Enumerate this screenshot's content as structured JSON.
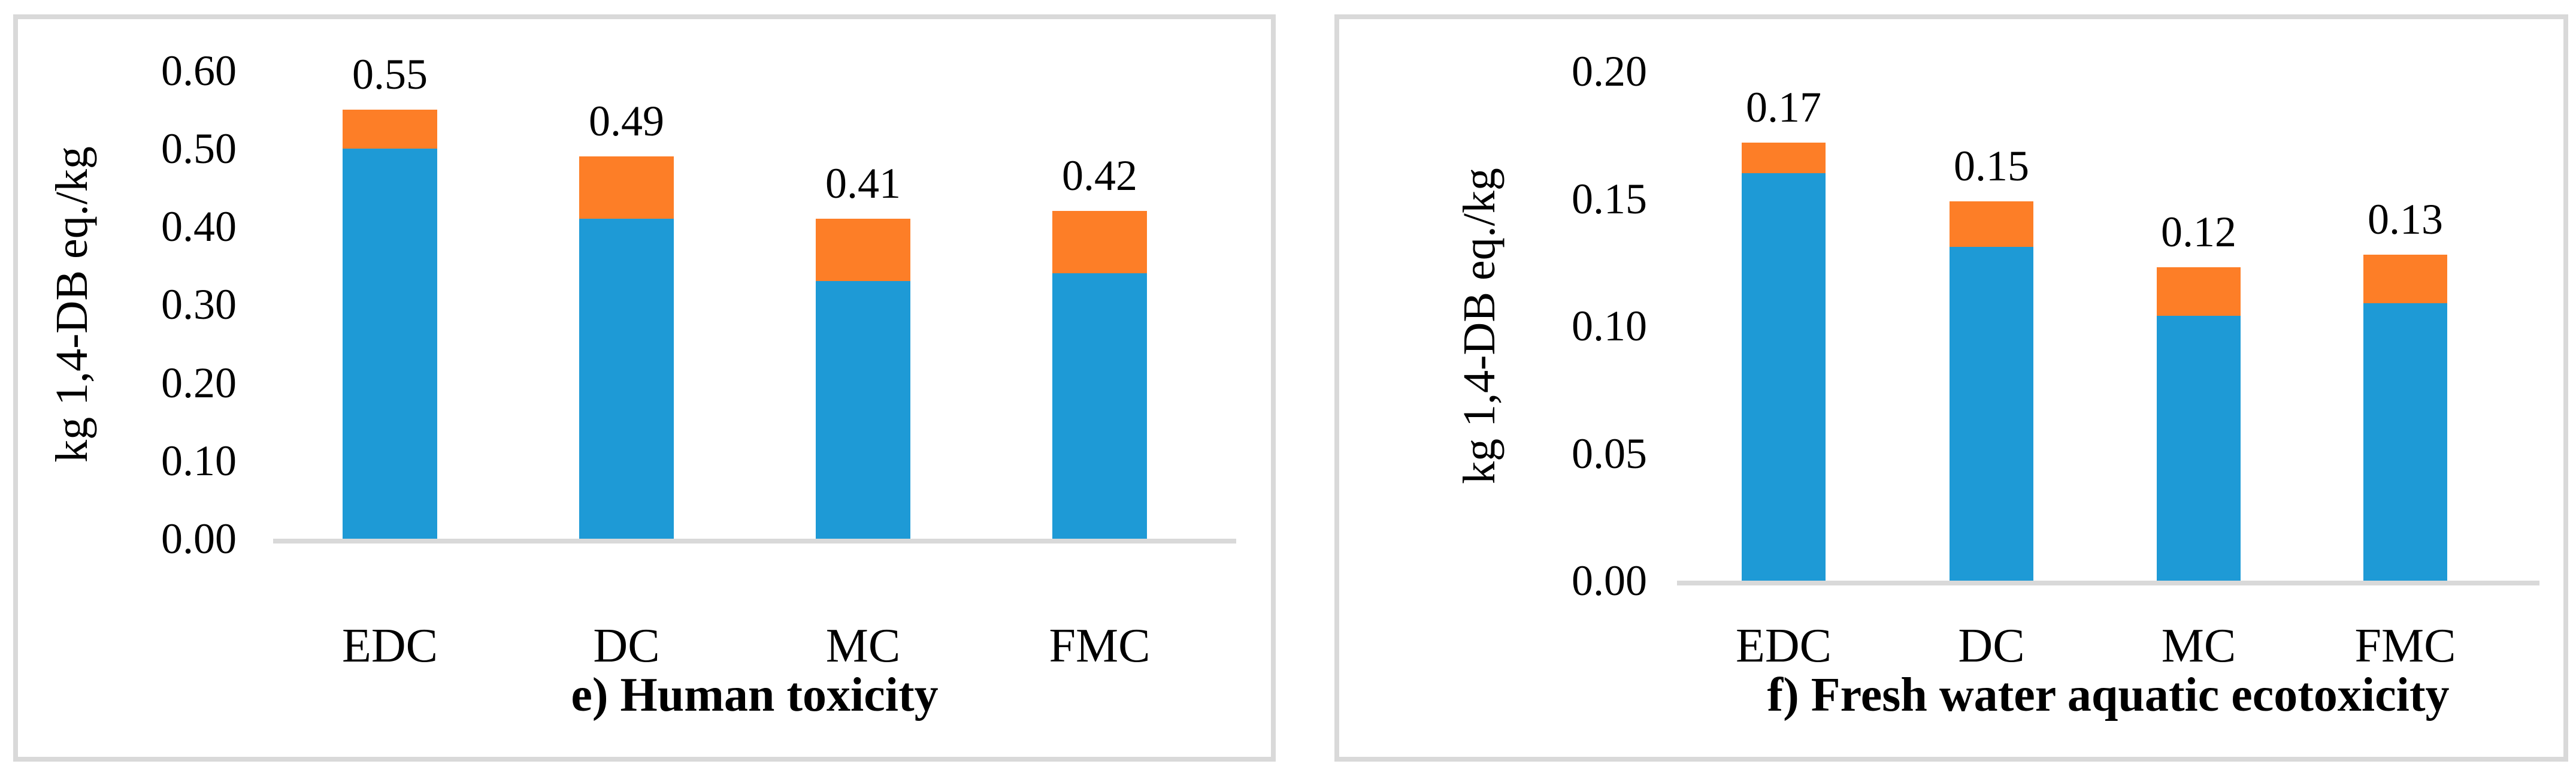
{
  "colors": {
    "series_blue": "#1E9AD6",
    "series_orange": "#FD7E27",
    "axis_gray": "#D9D9D9",
    "text": "#000000",
    "background": "#FFFFFF"
  },
  "chart_data": [
    {
      "type": "bar",
      "stacked": true,
      "title": "e) Human toxicity",
      "ylabel": "kg 1,4-DB eq./kg",
      "xlabel": "",
      "categories": [
        "EDC",
        "DC",
        "MC",
        "FMC"
      ],
      "series": [
        {
          "name": "blue-segment",
          "values": [
            0.5,
            0.41,
            0.33,
            0.34
          ]
        },
        {
          "name": "orange-segment",
          "values": [
            0.05,
            0.08,
            0.08,
            0.08
          ]
        }
      ],
      "total_labels": [
        "0.55",
        "0.49",
        "0.41",
        "0.42"
      ],
      "ylim": [
        0.0,
        0.6
      ],
      "yticks": [
        {
          "label": "0.00",
          "value": 0.0
        },
        {
          "label": "0.10",
          "value": 0.1
        },
        {
          "label": "0.20",
          "value": 0.2
        },
        {
          "label": "0.30",
          "value": 0.3
        },
        {
          "label": "0.40",
          "value": 0.4
        },
        {
          "label": "0.50",
          "value": 0.5
        },
        {
          "label": "0.60",
          "value": 0.6
        }
      ],
      "grid": false,
      "legend": "none"
    },
    {
      "type": "bar",
      "stacked": true,
      "title": "f) Fresh water aquatic ecotoxicity",
      "ylabel": "kg 1,4-DB eq./kg",
      "xlabel": "",
      "categories": [
        "EDC",
        "DC",
        "MC",
        "FMC"
      ],
      "series": [
        {
          "name": "blue-segment",
          "values": [
            0.16,
            0.131,
            0.104,
            0.109
          ]
        },
        {
          "name": "orange-segment",
          "values": [
            0.012,
            0.018,
            0.019,
            0.019
          ]
        }
      ],
      "total_labels": [
        "0.17",
        "0.15",
        "0.12",
        "0.13"
      ],
      "ylim": [
        0.0,
        0.2
      ],
      "yticks": [
        {
          "label": "0.00",
          "value": 0.0
        },
        {
          "label": "0.05",
          "value": 0.05
        },
        {
          "label": "0.10",
          "value": 0.1
        },
        {
          "label": "0.15",
          "value": 0.15
        },
        {
          "label": "0.20",
          "value": 0.2
        }
      ],
      "grid": false,
      "legend": "none"
    }
  ]
}
